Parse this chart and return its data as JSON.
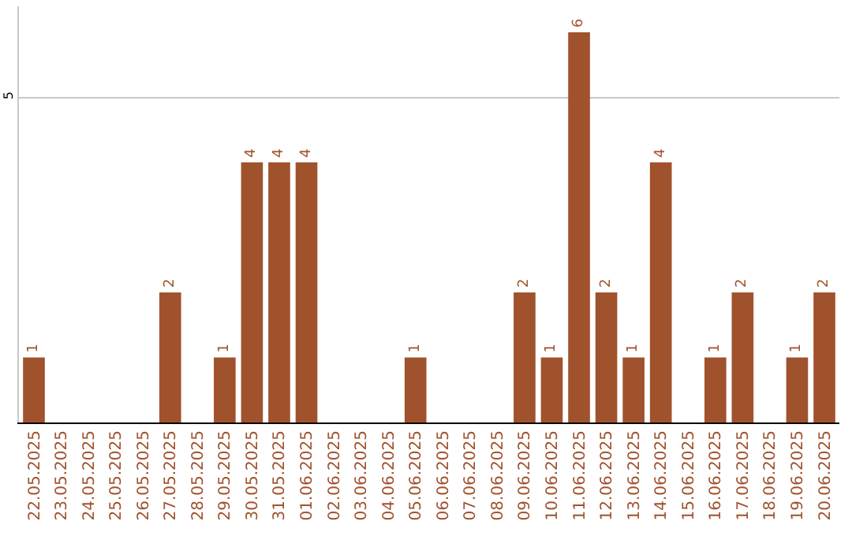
{
  "chart_data": {
    "type": "bar",
    "categories": [
      "22.05.2025",
      "23.05.2025",
      "24.05.2025",
      "25.05.2025",
      "26.05.2025",
      "27.05.2025",
      "28.05.2025",
      "29.05.2025",
      "30.05.2025",
      "31.05.2025",
      "01.06.2025",
      "02.06.2025",
      "03.06.2025",
      "04.06.2025",
      "05.06.2025",
      "06.06.2025",
      "07.06.2025",
      "08.06.2025",
      "09.06.2025",
      "10.06.2025",
      "11.06.2025",
      "12.06.2025",
      "13.06.2025",
      "14.06.2025",
      "15.06.2025",
      "16.06.2025",
      "17.06.2025",
      "18.06.2025",
      "19.06.2025",
      "20.06.2025"
    ],
    "values": [
      1,
      0,
      0,
      0,
      0,
      2,
      0,
      1,
      4,
      4,
      4,
      0,
      0,
      0,
      1,
      0,
      0,
      0,
      2,
      1,
      6,
      2,
      1,
      4,
      0,
      1,
      2,
      0,
      1,
      2
    ],
    "value_labels": [
      "1",
      null,
      null,
      null,
      null,
      "2",
      null,
      "1",
      "4",
      "4",
      "4",
      null,
      null,
      null,
      "1",
      null,
      null,
      null,
      "2",
      "1",
      "6",
      "2",
      "1",
      "4",
      null,
      "1",
      "2",
      null,
      "1",
      "2"
    ],
    "color": "#a0522d",
    "ylim": [
      0,
      6.4
    ],
    "yticks": [
      5
    ],
    "grid": "y"
  }
}
